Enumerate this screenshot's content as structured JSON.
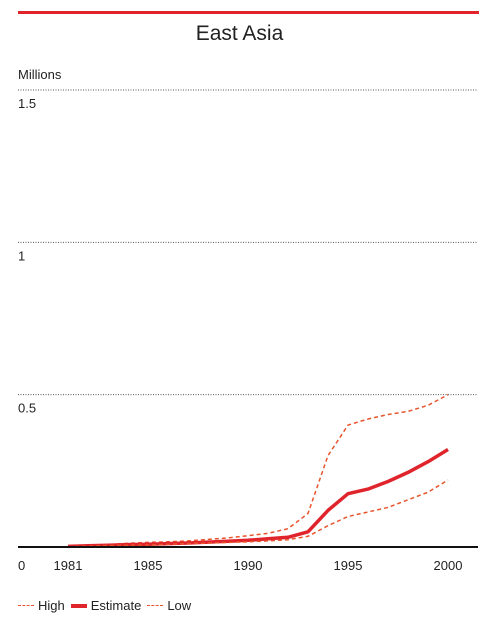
{
  "header": {
    "title": "East Asia",
    "unit": "Millions"
  },
  "legend": {
    "high": "High",
    "estimate": "Estimate",
    "low": "Low"
  },
  "colors": {
    "accent": "#e0242c",
    "series": "#e8542c",
    "grid": "#555555",
    "axis": "#111111"
  },
  "chart_data": {
    "type": "line",
    "title": "East Asia",
    "ylabel": "Millions",
    "xlabel": "",
    "xlim": [
      1978.5,
      2001.5
    ],
    "ylim": [
      0,
      1.5
    ],
    "xticks": [
      1981,
      1985,
      1990,
      1995,
      2000
    ],
    "xtick_labels": [
      "1981",
      "1985",
      "1990",
      "1995",
      "2000"
    ],
    "yticks": [
      0.5,
      1,
      1.5
    ],
    "ytick_labels": [
      "0.5",
      "1",
      "1.5"
    ],
    "origin_label": "0",
    "grid": "dotted horizontal",
    "legend_position": "bottom-left",
    "x": [
      1981,
      1982,
      1983,
      1984,
      1985,
      1986,
      1987,
      1988,
      1989,
      1990,
      1991,
      1992,
      1993,
      1994,
      1995,
      1996,
      1997,
      1998,
      1999,
      2000
    ],
    "series": [
      {
        "name": "High",
        "style": "dashed",
        "values": [
          0.003,
          0.006,
          0.008,
          0.012,
          0.015,
          0.017,
          0.02,
          0.025,
          0.03,
          0.037,
          0.045,
          0.06,
          0.11,
          0.3,
          0.4,
          0.42,
          0.435,
          0.445,
          0.465,
          0.5
        ]
      },
      {
        "name": "Estimate",
        "style": "solid",
        "values": [
          0.002,
          0.004,
          0.006,
          0.008,
          0.009,
          0.011,
          0.013,
          0.016,
          0.019,
          0.022,
          0.027,
          0.032,
          0.05,
          0.12,
          0.175,
          0.19,
          0.215,
          0.245,
          0.28,
          0.32
        ]
      },
      {
        "name": "Low",
        "style": "dashed",
        "values": [
          0.001,
          0.003,
          0.005,
          0.006,
          0.007,
          0.009,
          0.011,
          0.013,
          0.015,
          0.017,
          0.02,
          0.024,
          0.035,
          0.07,
          0.1,
          0.115,
          0.13,
          0.155,
          0.18,
          0.22
        ]
      }
    ]
  }
}
